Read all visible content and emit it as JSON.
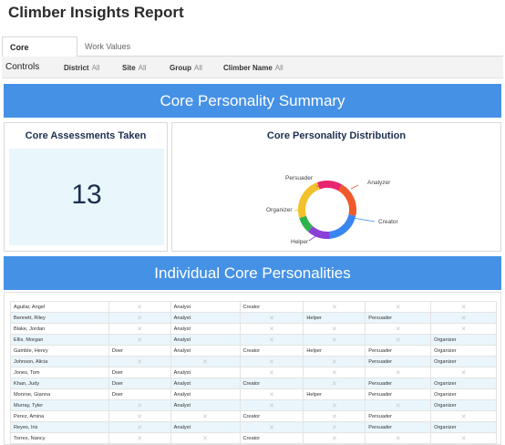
{
  "report": {
    "title": "Climber Insights Report"
  },
  "tabs": [
    {
      "label": "Core Personality",
      "active": true
    },
    {
      "label": "Work Values",
      "active": false
    }
  ],
  "controls": {
    "label": "Controls",
    "filters": [
      {
        "label": "District",
        "value": "All"
      },
      {
        "label": "Site",
        "value": "All"
      },
      {
        "label": "Group",
        "value": "All"
      },
      {
        "label": "Climber Name",
        "value": "All"
      }
    ]
  },
  "summary": {
    "banner": "Core Personality Summary",
    "kpi": {
      "title": "Core Assessments Taken",
      "value": "13"
    },
    "distribution_title": "Core Personality Distribution"
  },
  "chart_data": {
    "type": "pie",
    "title": "Core Personality Distribution",
    "categories": [
      "Analyzer",
      "Creator",
      "Helper",
      "Organizer",
      "Persuader"
    ],
    "values": [
      20,
      20,
      20,
      20,
      20
    ],
    "colors": [
      "#f05a2a",
      "#3a86f0",
      "#8a3fd6",
      "#f2c12e",
      "#e8256f"
    ],
    "extra_colors": [
      "#2fb24c"
    ],
    "legend": "labels-around"
  },
  "individual": {
    "banner": "Individual Core Personalities",
    "marker": "✕",
    "rows": [
      [
        "Aguilar, Angel",
        "",
        "Analyst",
        "Creator",
        "",
        "",
        ""
      ],
      [
        "Bennett, Riley",
        "",
        "Analyst",
        "",
        "Helper",
        "Persuader",
        ""
      ],
      [
        "Blake, Jordan",
        "",
        "Analyst",
        "",
        "",
        "",
        ""
      ],
      [
        "Ellis, Morgan",
        "",
        "Analyst",
        "",
        "",
        "",
        "Organizer"
      ],
      [
        "Gamble, Henry",
        "Doer",
        "Analyst",
        "Creator",
        "Helper",
        "Persuader",
        "Organizer"
      ],
      [
        "Johnson, Alicia",
        "",
        "",
        "",
        "",
        "Persuader",
        "Organizer"
      ],
      [
        "Jones, Tom",
        "Doer",
        "Analyst",
        "",
        "",
        "",
        ""
      ],
      [
        "Khan, Judy",
        "Doer",
        "Analyst",
        "Creator",
        "",
        "Persuader",
        "Organizer"
      ],
      [
        "Monroe, Gianna",
        "Doer",
        "Analyst",
        "",
        "Helper",
        "Persuader",
        "Organizer"
      ],
      [
        "Murray, Tyler",
        "",
        "Analyst",
        "",
        "",
        "",
        "Organizer"
      ],
      [
        "Perez, Amina",
        "",
        "",
        "Creator",
        "",
        "Persuader",
        ""
      ],
      [
        "Reyes, Iris",
        "",
        "Analyst",
        "",
        "",
        "Persuader",
        "Organizer"
      ],
      [
        "Torres, Nancy",
        "",
        "",
        "Creator",
        "",
        "",
        ""
      ]
    ]
  }
}
